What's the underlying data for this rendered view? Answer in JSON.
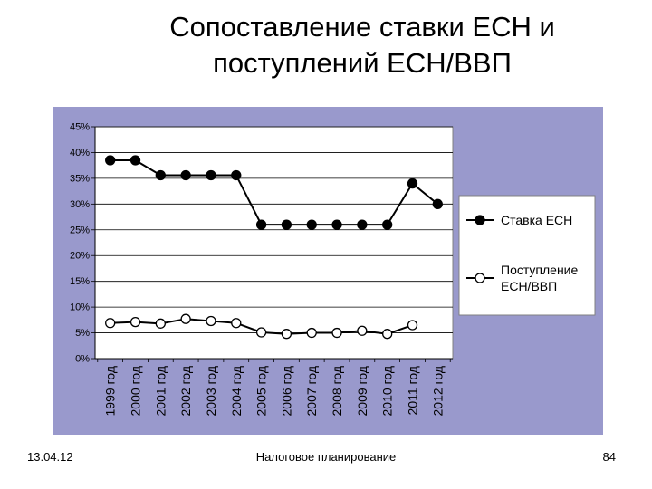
{
  "slide": {
    "title_line1": "Сопоставление ставки ЕСН и",
    "title_line2": "поступлений ЕСН/ВВП",
    "date": "13.04.12",
    "footer": "Налоговое планирование",
    "page_number": "84"
  },
  "colors": {
    "plot_background": "#9999cc",
    "plot_area": "#ffffff",
    "series_line": "#000000",
    "filled_marker": "#000000",
    "hollow_marker": "#ffffff"
  },
  "chart_data": {
    "type": "line",
    "categories": [
      "1999 год",
      "2000 год",
      "2001 год",
      "2002 год",
      "2003 год",
      "2004 год",
      "2005 год",
      "2006 год",
      "2007 год",
      "2008 год",
      "2009 год",
      "2010 год",
      "2011 год",
      "2012 год"
    ],
    "y_ticks": [
      "0%",
      "5%",
      "10%",
      "15%",
      "20%",
      "25%",
      "30%",
      "35%",
      "40%",
      "45%"
    ],
    "ylim": [
      0,
      45
    ],
    "y_unit": "%",
    "grid": "horizontal",
    "legend_position": "right",
    "series": [
      {
        "name": "Ставка ЕСН",
        "marker": "filled-circle",
        "values": [
          38.5,
          38.5,
          35.6,
          35.6,
          35.6,
          35.6,
          26,
          26,
          26,
          26,
          26,
          26,
          34,
          30
        ]
      },
      {
        "name": "Поступление ЕСН/ВВП",
        "marker": "hollow-circle",
        "values": [
          6.9,
          7.1,
          6.8,
          7.7,
          7.3,
          6.9,
          5.1,
          4.8,
          5.0,
          5.0,
          5.4,
          4.8,
          6.5,
          null
        ]
      }
    ]
  }
}
